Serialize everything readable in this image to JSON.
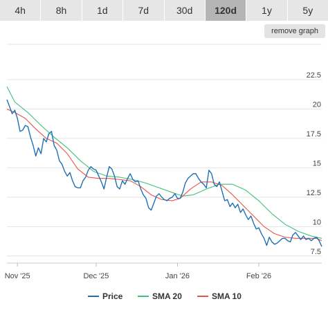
{
  "tabs": [
    {
      "label": "4h",
      "active": false
    },
    {
      "label": "8h",
      "active": false
    },
    {
      "label": "1d",
      "active": false
    },
    {
      "label": "7d",
      "active": false
    },
    {
      "label": "30d",
      "active": false
    },
    {
      "label": "120d",
      "active": true
    },
    {
      "label": "1y",
      "active": false
    },
    {
      "label": "5y",
      "active": false
    }
  ],
  "remove_graph_label": "remove graph",
  "chart_data": {
    "type": "line",
    "title": "",
    "xlabel": "",
    "ylabel": "",
    "x_range": [
      "2025-10-28",
      "2026-02-25"
    ],
    "ylim": [
      6.9,
      25.5
    ],
    "y_ticks": [
      7.5,
      10,
      12.5,
      15,
      17.5,
      20,
      22.5
    ],
    "y_tick_labels": [
      "7.5",
      "10",
      "12.5",
      "15",
      "17.5",
      "20",
      "22.5"
    ],
    "x_ticks": [
      {
        "date": "2025-11-01",
        "label": "Nov '25"
      },
      {
        "date": "2025-12-01",
        "label": "Dec '25"
      },
      {
        "date": "2026-01-01",
        "label": "Jan '26"
      },
      {
        "date": "2026-02-01",
        "label": "Feb '26"
      }
    ],
    "grid": true,
    "legend_position": "bottom",
    "series": [
      {
        "name": "Price",
        "color": "#1f6fb4",
        "points": [
          [
            "2025-10-28",
            20.8
          ],
          [
            "2025-10-29",
            20.2
          ],
          [
            "2025-10-30",
            19.6
          ],
          [
            "2025-10-31",
            19.9
          ],
          [
            "2025-11-01",
            19.2
          ],
          [
            "2025-11-02",
            18.1
          ],
          [
            "2025-11-03",
            18.2
          ],
          [
            "2025-11-04",
            18.6
          ],
          [
            "2025-11-05",
            18.5
          ],
          [
            "2025-11-06",
            17.6
          ],
          [
            "2025-11-07",
            16.9
          ],
          [
            "2025-11-08",
            16.0
          ],
          [
            "2025-11-09",
            16.7
          ],
          [
            "2025-11-10",
            16.2
          ],
          [
            "2025-11-11",
            17.5
          ],
          [
            "2025-11-12",
            17.2
          ],
          [
            "2025-11-13",
            17.9
          ],
          [
            "2025-11-14",
            18.1
          ],
          [
            "2025-11-15",
            16.9
          ],
          [
            "2025-11-16",
            16.5
          ],
          [
            "2025-11-17",
            15.6
          ],
          [
            "2025-11-18",
            15.3
          ],
          [
            "2025-11-19",
            14.7
          ],
          [
            "2025-11-20",
            14.3
          ],
          [
            "2025-11-21",
            14.6
          ],
          [
            "2025-11-22",
            13.9
          ],
          [
            "2025-11-23",
            13.4
          ],
          [
            "2025-11-24",
            13.3
          ],
          [
            "2025-11-25",
            13.3
          ],
          [
            "2025-11-26",
            13.9
          ],
          [
            "2025-11-27",
            14.2
          ],
          [
            "2025-11-28",
            14.8
          ],
          [
            "2025-11-29",
            15.1
          ],
          [
            "2025-11-30",
            14.9
          ],
          [
            "2025-12-01",
            14.8
          ],
          [
            "2025-12-02",
            14.3
          ],
          [
            "2025-12-03",
            13.8
          ],
          [
            "2025-12-04",
            13.2
          ],
          [
            "2025-12-05",
            14.2
          ],
          [
            "2025-12-06",
            15.1
          ],
          [
            "2025-12-07",
            14.9
          ],
          [
            "2025-12-08",
            14.3
          ],
          [
            "2025-12-09",
            13.4
          ],
          [
            "2025-12-10",
            13.2
          ],
          [
            "2025-12-11",
            13.9
          ],
          [
            "2025-12-12",
            13.6
          ],
          [
            "2025-12-13",
            14.1
          ],
          [
            "2025-12-14",
            14.5
          ],
          [
            "2025-12-15",
            14.0
          ],
          [
            "2025-12-16",
            13.8
          ],
          [
            "2025-12-17",
            13.9
          ],
          [
            "2025-12-18",
            13.2
          ],
          [
            "2025-12-19",
            12.7
          ],
          [
            "2025-12-20",
            12.4
          ],
          [
            "2025-12-21",
            11.6
          ],
          [
            "2025-12-22",
            11.4
          ],
          [
            "2025-12-23",
            12.0
          ],
          [
            "2025-12-24",
            12.6
          ],
          [
            "2025-12-25",
            12.8
          ],
          [
            "2025-12-26",
            12.5
          ],
          [
            "2025-12-27",
            12.3
          ],
          [
            "2025-12-28",
            12.2
          ],
          [
            "2025-12-29",
            12.4
          ],
          [
            "2025-12-30",
            12.5
          ],
          [
            "2025-12-31",
            12.8
          ],
          [
            "2026-01-01",
            12.4
          ],
          [
            "2026-01-02",
            12.4
          ],
          [
            "2026-01-03",
            12.9
          ],
          [
            "2026-01-04",
            13.7
          ],
          [
            "2026-01-05",
            14.1
          ],
          [
            "2026-01-06",
            14.3
          ],
          [
            "2026-01-07",
            14.5
          ],
          [
            "2026-01-08",
            14.5
          ],
          [
            "2026-01-09",
            14.1
          ],
          [
            "2026-01-10",
            13.8
          ],
          [
            "2026-01-11",
            13.6
          ],
          [
            "2026-01-12",
            13.3
          ],
          [
            "2026-01-13",
            14.8
          ],
          [
            "2026-01-14",
            14.5
          ],
          [
            "2026-01-15",
            13.6
          ],
          [
            "2026-01-16",
            13.4
          ],
          [
            "2026-01-17",
            13.8
          ],
          [
            "2026-01-18",
            13.0
          ],
          [
            "2026-01-19",
            12.2
          ],
          [
            "2026-01-20",
            12.3
          ],
          [
            "2026-01-21",
            11.7
          ],
          [
            "2026-01-22",
            12.0
          ],
          [
            "2026-01-23",
            11.6
          ],
          [
            "2026-01-24",
            11.9
          ],
          [
            "2026-01-25",
            11.2
          ],
          [
            "2026-01-26",
            11.5
          ],
          [
            "2026-01-27",
            11.0
          ],
          [
            "2026-01-28",
            10.6
          ],
          [
            "2026-01-29",
            10.9
          ],
          [
            "2026-01-30",
            10.3
          ],
          [
            "2026-01-31",
            9.8
          ],
          [
            "2026-02-01",
            9.9
          ],
          [
            "2026-02-02",
            9.4
          ],
          [
            "2026-02-03",
            9.0
          ],
          [
            "2026-02-04",
            8.4
          ],
          [
            "2026-02-05",
            9.1
          ],
          [
            "2026-02-06",
            8.7
          ],
          [
            "2026-02-07",
            8.5
          ],
          [
            "2026-02-08",
            8.6
          ],
          [
            "2026-02-09",
            8.8
          ],
          [
            "2026-02-10",
            9.0
          ],
          [
            "2026-02-11",
            9.0
          ],
          [
            "2026-02-12",
            8.8
          ],
          [
            "2026-02-13",
            8.7
          ],
          [
            "2026-02-14",
            9.3
          ],
          [
            "2026-02-15",
            9.5
          ],
          [
            "2026-02-16",
            9.2
          ],
          [
            "2026-02-17",
            8.9
          ],
          [
            "2026-02-18",
            9.2
          ],
          [
            "2026-02-19",
            8.9
          ],
          [
            "2026-02-20",
            9.0
          ],
          [
            "2026-02-21",
            8.8
          ],
          [
            "2026-02-22",
            9.0
          ],
          [
            "2026-02-23",
            9.1
          ],
          [
            "2026-02-24",
            8.8
          ],
          [
            "2026-02-25",
            8.3
          ]
        ]
      },
      {
        "name": "SMA 20",
        "color": "#3fc07a",
        "points": [
          [
            "2025-10-28",
            21.9
          ],
          [
            "2025-10-31",
            20.6
          ],
          [
            "2025-11-05",
            19.7
          ],
          [
            "2025-11-10",
            18.6
          ],
          [
            "2025-11-15",
            17.6
          ],
          [
            "2025-11-20",
            16.7
          ],
          [
            "2025-11-25",
            15.6
          ],
          [
            "2025-11-30",
            14.7
          ],
          [
            "2025-12-05",
            14.3
          ],
          [
            "2025-12-10",
            14.2
          ],
          [
            "2025-12-15",
            14.0
          ],
          [
            "2025-12-20",
            13.7
          ],
          [
            "2025-12-25",
            13.3
          ],
          [
            "2025-12-30",
            12.9
          ],
          [
            "2026-01-03",
            12.6
          ],
          [
            "2026-01-07",
            12.7
          ],
          [
            "2026-01-12",
            13.2
          ],
          [
            "2026-01-17",
            13.6
          ],
          [
            "2026-01-22",
            13.6
          ],
          [
            "2026-01-27",
            13.1
          ],
          [
            "2026-02-01",
            12.2
          ],
          [
            "2026-02-06",
            11.1
          ],
          [
            "2026-02-11",
            10.2
          ],
          [
            "2026-02-16",
            9.6
          ],
          [
            "2026-02-21",
            9.2
          ],
          [
            "2026-02-25",
            9.0
          ]
        ]
      },
      {
        "name": "SMA 10",
        "color": "#e8524a",
        "points": [
          [
            "2025-10-28",
            20.0
          ],
          [
            "2025-10-31",
            19.7
          ],
          [
            "2025-11-04",
            19.2
          ],
          [
            "2025-11-08",
            18.3
          ],
          [
            "2025-11-12",
            17.5
          ],
          [
            "2025-11-16",
            17.1
          ],
          [
            "2025-11-20",
            16.2
          ],
          [
            "2025-11-24",
            14.9
          ],
          [
            "2025-11-28",
            14.2
          ],
          [
            "2025-12-02",
            14.1
          ],
          [
            "2025-12-06",
            14.1
          ],
          [
            "2025-12-10",
            14.0
          ],
          [
            "2025-12-14",
            13.9
          ],
          [
            "2025-12-18",
            13.4
          ],
          [
            "2025-12-22",
            12.7
          ],
          [
            "2025-12-26",
            12.3
          ],
          [
            "2025-12-30",
            12.2
          ],
          [
            "2026-01-02",
            12.4
          ],
          [
            "2026-01-06",
            13.2
          ],
          [
            "2026-01-10",
            13.8
          ],
          [
            "2026-01-14",
            13.8
          ],
          [
            "2026-01-18",
            13.5
          ],
          [
            "2026-01-22",
            12.7
          ],
          [
            "2026-01-26",
            11.8
          ],
          [
            "2026-01-30",
            10.9
          ],
          [
            "2026-02-03",
            10.0
          ],
          [
            "2026-02-07",
            9.4
          ],
          [
            "2026-02-11",
            9.1
          ],
          [
            "2026-02-15",
            9.0
          ],
          [
            "2026-02-19",
            9.0
          ],
          [
            "2026-02-23",
            9.0
          ],
          [
            "2026-02-25",
            8.8
          ]
        ]
      }
    ]
  }
}
